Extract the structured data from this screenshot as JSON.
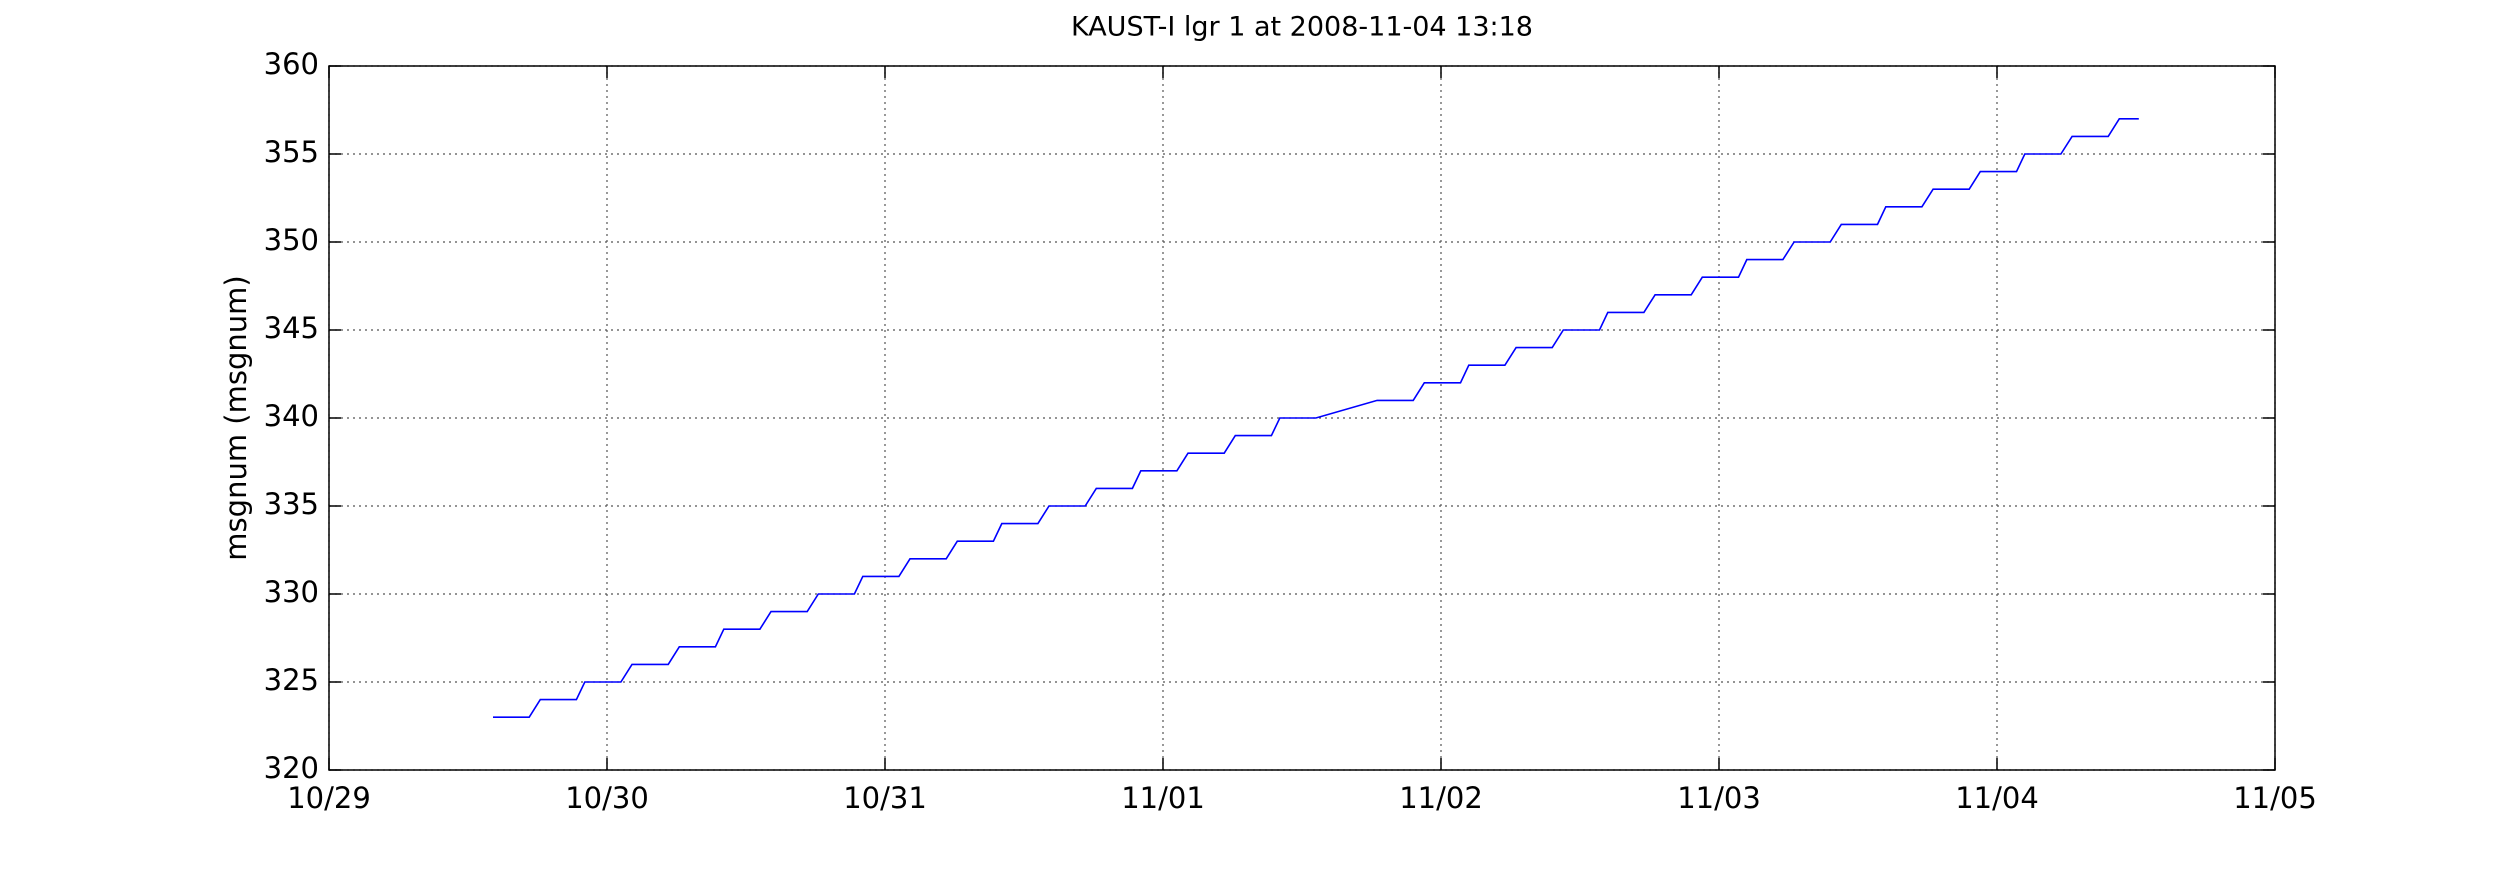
{
  "chart_data": {
    "type": "line",
    "title": "KAUST-I lgr 1 at 2008-11-04 13:18",
    "y_label": "msgnum (msgnum)",
    "series": [
      {
        "color": "#0000ff",
        "x": [
          0.59,
          0.72,
          0.76,
          0.89,
          0.92,
          1.05,
          1.09,
          1.22,
          1.26,
          1.39,
          1.42,
          1.55,
          1.59,
          1.72,
          1.76,
          1.89,
          1.92,
          2.05,
          2.09,
          2.22,
          2.26,
          2.39,
          2.42,
          2.55,
          2.59,
          2.72,
          2.76,
          2.89,
          2.92,
          3.05,
          3.09,
          3.22,
          3.26,
          3.39,
          3.42,
          3.55,
          3.77,
          3.9,
          3.94,
          4.07,
          4.1,
          4.23,
          4.27,
          4.4,
          4.44,
          4.57,
          4.6,
          4.73,
          4.77,
          4.9,
          4.94,
          5.07,
          5.1,
          5.23,
          5.27,
          5.4,
          5.44,
          5.57,
          5.6,
          5.73,
          5.77,
          5.9,
          5.94,
          6.07,
          6.1,
          6.23,
          6.27,
          6.4,
          6.44,
          6.51
        ],
        "values": [
          323,
          323,
          324,
          324,
          325,
          325,
          326,
          326,
          327,
          327,
          328,
          328,
          329,
          329,
          330,
          330,
          331,
          331,
          332,
          332,
          333,
          333,
          334,
          334,
          335,
          335,
          336,
          336,
          337,
          337,
          338,
          338,
          339,
          339,
          340,
          340,
          341,
          341,
          342,
          342,
          343,
          343,
          344,
          344,
          345,
          345,
          346,
          346,
          347,
          347,
          348,
          348,
          349,
          349,
          350,
          350,
          351,
          351,
          352,
          352,
          353,
          353,
          354,
          354,
          355,
          355,
          356,
          356,
          357,
          357
        ]
      }
    ],
    "xlim": [
      0,
      7
    ],
    "xticks": [
      {
        "value": 0,
        "label": "10/29"
      },
      {
        "value": 1,
        "label": "10/30"
      },
      {
        "value": 2,
        "label": "10/31"
      },
      {
        "value": 3,
        "label": "11/01"
      },
      {
        "value": 4,
        "label": "11/02"
      },
      {
        "value": 5,
        "label": "11/03"
      },
      {
        "value": 6,
        "label": "11/04"
      },
      {
        "value": 7,
        "label": "11/05"
      }
    ],
    "ylim": [
      320,
      360
    ],
    "yticks": [
      320,
      325,
      330,
      335,
      340,
      345,
      350,
      355,
      360
    ],
    "grid": true
  }
}
